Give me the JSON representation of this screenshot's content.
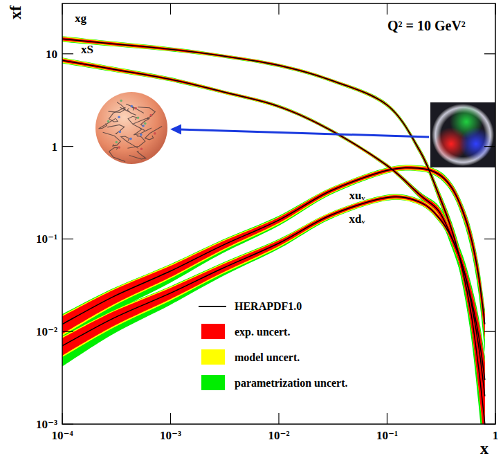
{
  "chart_data": {
    "type": "line",
    "log": true,
    "grid": false,
    "legend": "bottom",
    "x_label": "x",
    "y_label": "xf",
    "annotation": "Q² = 10 GeV²",
    "xlim": [
      0.0001,
      1
    ],
    "ylim": [
      0.001,
      35
    ],
    "xticks": [
      {
        "value": 0.0001,
        "label": "10⁻⁴"
      },
      {
        "value": 0.001,
        "label": "10⁻³"
      },
      {
        "value": 0.01,
        "label": "10⁻²"
      },
      {
        "value": 0.1,
        "label": "10⁻¹"
      },
      1
    ],
    "yticks": [
      {
        "value": 0.001,
        "label": "10⁻³"
      },
      {
        "value": 0.01,
        "label": "10⁻²"
      },
      {
        "value": 0.1,
        "label": "10⁻¹"
      },
      1,
      10
    ],
    "central": {
      "name": "HERAPDF1.0",
      "color": "#000000"
    },
    "bands": [
      {
        "name": "exp. uncert.",
        "color": "#ff0000"
      },
      {
        "name": "model uncert.",
        "color": "#ffff00"
      },
      {
        "name": "parametrization uncert.",
        "color": "#00ee00"
      }
    ],
    "x": [
      0.0001,
      0.0003,
      0.001,
      0.003,
      0.01,
      0.03,
      0.1,
      0.2,
      0.3,
      0.4,
      0.5,
      0.6,
      0.7,
      0.8
    ],
    "series": [
      {
        "name": "xg",
        "color": "#000000",
        "values": [
          14.5,
          12.8,
          11.2,
          9.5,
          7.5,
          5.2,
          2.8,
          0.9,
          0.3,
          0.12,
          0.045,
          0.015,
          0.004,
          0.001
        ],
        "bands": [
          {
            "low": [
              13.92,
              12.35,
              10.86,
              9.26,
              7.31,
              5.07,
              2.72,
              0.855,
              0.276,
              0.106,
              0.0369,
              0.0108,
              0.0024,
              0.00055
            ],
            "high": [
              15.08,
              13.25,
              11.54,
              9.74,
              7.69,
              5.33,
              2.88,
              0.945,
              0.324,
              0.134,
              0.0531,
              0.0192,
              0.0056,
              0.0016
            ]
          },
          {
            "low": [
              13.63,
              12.16,
              10.75,
              9.17,
              7.24,
              5.02,
              2.69,
              0.846,
              0.27,
              0.103,
              0.036,
              0.0105,
              0.0023,
              0.0005
            ],
            "high": [
              15.37,
              13.44,
              11.65,
              9.83,
              7.76,
              5.38,
              2.91,
              0.954,
              0.33,
              0.137,
              0.054,
              0.0195,
              0.0057,
              0.0016
            ]
          },
          {
            "low": [
              13.49,
              12.03,
              10.64,
              9.12,
              7.2,
              4.99,
              2.66,
              0.828,
              0.258,
              0.094,
              0.0306,
              0.0083,
              0.0016,
              0.0003
            ],
            "high": [
              15.52,
              13.57,
              11.76,
              9.88,
              7.8,
              5.41,
              2.94,
              0.972,
              0.342,
              0.146,
              0.0594,
              0.0218,
              0.0064,
              0.0018
            ]
          }
        ]
      },
      {
        "name": "xS",
        "color": "#000000",
        "values": [
          8.5,
          6.8,
          5.3,
          3.9,
          2.7,
          1.5,
          0.62,
          0.3,
          0.2,
          0.1,
          0.05,
          0.022,
          0.009,
          0.003
        ],
        "bands": [
          {
            "low": [
              8.16,
              6.56,
              5.14,
              3.8,
              2.63,
              1.46,
              0.601,
              0.285,
              0.184,
              0.088,
              0.041,
              0.0158,
              0.0054,
              0.00135
            ],
            "high": [
              8.84,
              7.04,
              5.46,
              4.0,
              2.77,
              1.54,
              0.639,
              0.315,
              0.216,
              0.112,
              0.059,
              0.0282,
              0.0126,
              0.00465
            ]
          },
          {
            "low": [
              7.99,
              6.46,
              5.09,
              3.76,
              2.61,
              1.45,
              0.595,
              0.282,
              0.18,
              0.086,
              0.04,
              0.0154,
              0.0051,
              0.00126
            ],
            "high": [
              9.01,
              7.14,
              5.51,
              4.04,
              2.79,
              1.55,
              0.645,
              0.318,
              0.22,
              0.114,
              0.06,
              0.0286,
              0.0129,
              0.00474
            ]
          },
          {
            "low": [
              7.91,
              6.39,
              5.04,
              3.74,
              2.59,
              1.44,
              0.589,
              0.276,
              0.172,
              0.078,
              0.034,
              0.0121,
              0.0036,
              0.00075
            ],
            "high": [
              9.1,
              7.21,
              5.57,
              4.06,
              2.81,
              1.56,
              0.651,
              0.324,
              0.228,
              0.122,
              0.066,
              0.0319,
              0.0144,
              0.0054
            ]
          }
        ]
      },
      {
        "name": "xuᵥ",
        "color": "#000000",
        "values": [
          0.012,
          0.024,
          0.045,
          0.085,
          0.16,
          0.33,
          0.55,
          0.58,
          0.5,
          0.35,
          0.2,
          0.1,
          0.04,
          0.012
        ],
        "bands": [
          {
            "low": [
              0.0094,
              0.0197,
              0.0387,
              0.0765,
              0.149,
              0.314,
              0.528,
              0.557,
              0.475,
              0.326,
              0.18,
              0.085,
              0.032,
              0.0086
            ],
            "high": [
              0.0146,
              0.0283,
              0.0513,
              0.0935,
              0.171,
              0.347,
              0.572,
              0.603,
              0.525,
              0.375,
              0.22,
              0.115,
              0.048,
              0.0154
            ]
          },
          {
            "low": [
              0.009,
              0.019,
              0.0374,
              0.074,
              0.144,
              0.307,
              0.517,
              0.545,
              0.465,
              0.319,
              0.174,
              0.082,
              0.0304,
              0.0082
            ],
            "high": [
              0.015,
              0.029,
              0.0527,
              0.096,
              0.174,
              0.353,
              0.583,
              0.615,
              0.535,
              0.382,
              0.226,
              0.118,
              0.0496,
              0.0158
            ]
          },
          {
            "low": [
              0.0072,
              0.0163,
              0.0338,
              0.0697,
              0.139,
              0.3,
              0.512,
              0.539,
              0.455,
              0.308,
              0.164,
              0.074,
              0.0256,
              0.006
            ],
            "high": [
              0.0154,
              0.0295,
              0.0536,
              0.0978,
              0.178,
              0.356,
              0.589,
              0.621,
              0.545,
              0.392,
              0.234,
              0.124,
              0.0528,
              0.0174
            ]
          }
        ]
      },
      {
        "name": "xdᵥ",
        "color": "#000000",
        "values": [
          0.007,
          0.014,
          0.026,
          0.048,
          0.09,
          0.18,
          0.28,
          0.25,
          0.17,
          0.1,
          0.05,
          0.02,
          0.007,
          0.002
        ],
        "bands": [
          {
            "low": [
              0.0055,
              0.0115,
              0.0224,
              0.0432,
              0.0837,
              0.171,
              0.269,
              0.24,
              0.162,
              0.093,
              0.045,
              0.017,
              0.0056,
              0.00144
            ],
            "high": [
              0.0085,
              0.0165,
              0.0296,
              0.0528,
              0.0963,
              0.189,
              0.291,
              0.26,
              0.179,
              0.107,
              0.055,
              0.023,
              0.0084,
              0.00256
            ]
          },
          {
            "low": [
              0.0053,
              0.0111,
              0.0216,
              0.0418,
              0.081,
              0.167,
              0.263,
              0.235,
              0.158,
              0.091,
              0.0435,
              0.0164,
              0.0053,
              0.00136
            ],
            "high": [
              0.0088,
              0.0169,
              0.0304,
              0.0542,
              0.0981,
              0.193,
              0.297,
              0.265,
              0.182,
              0.109,
              0.0565,
              0.0236,
              0.0087,
              0.00264
            ]
          },
          {
            "low": [
              0.0042,
              0.0095,
              0.0195,
              0.0394,
              0.0783,
              0.164,
              0.26,
              0.233,
              0.155,
              0.088,
              0.041,
              0.0148,
              0.0045,
              0.001
            ],
            "high": [
              0.009,
              0.0172,
              0.0309,
              0.0552,
              0.0999,
              0.194,
              0.3,
              0.268,
              0.185,
              0.112,
              0.0585,
              0.0248,
              0.0092,
              0.0029
            ]
          }
        ]
      }
    ]
  }
}
